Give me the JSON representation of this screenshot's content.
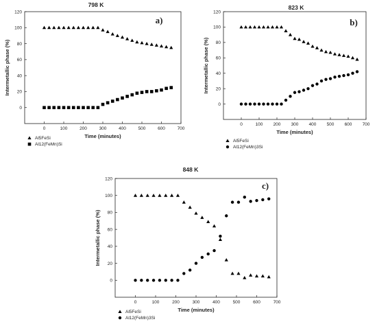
{
  "chart_data": [
    {
      "type": "scatter",
      "title": "798 K",
      "panel_label": "a)",
      "xlabel": "Time (minutes)",
      "ylabel": "Intermetallic phase (%)",
      "xlim": [
        -100,
        700
      ],
      "ylim": [
        -20,
        120
      ],
      "xticks": [
        "0",
        "100",
        "200",
        "300",
        "400",
        "500",
        "600",
        "700"
      ],
      "yticks": [
        "0",
        "20",
        "40",
        "60",
        "80",
        "100",
        "120"
      ],
      "grid": false,
      "legend_position": "bottom-left",
      "series": [
        {
          "name": "Al5FeSi",
          "marker": "triangle",
          "x": [
            0,
            25,
            50,
            75,
            100,
            125,
            150,
            175,
            200,
            225,
            250,
            275,
            300,
            325,
            350,
            375,
            400,
            425,
            450,
            475,
            500,
            525,
            550,
            575,
            600,
            625,
            650
          ],
          "y": [
            100,
            100,
            100,
            100,
            100,
            100,
            100,
            100,
            100,
            100,
            100,
            100,
            97,
            95,
            92,
            90,
            88,
            86,
            84,
            82,
            81,
            80,
            79,
            78,
            77,
            76,
            75
          ]
        },
        {
          "name": "Al12(FeMn)Si",
          "marker": "square",
          "x": [
            0,
            25,
            50,
            75,
            100,
            125,
            150,
            175,
            200,
            225,
            250,
            275,
            300,
            325,
            350,
            375,
            400,
            425,
            450,
            475,
            500,
            525,
            550,
            575,
            600,
            625,
            650
          ],
          "y": [
            0,
            0,
            0,
            0,
            0,
            0,
            0,
            0,
            0,
            0,
            0,
            0,
            4,
            6,
            8,
            10,
            12,
            14,
            16,
            18,
            19,
            20,
            20,
            21,
            22,
            24,
            25
          ]
        }
      ]
    },
    {
      "type": "scatter",
      "title": "823 K",
      "panel_label": "b)",
      "xlabel": "Time (minutes)",
      "ylabel": "Intermetallic phase (%)",
      "xlim": [
        -100,
        700
      ],
      "ylim": [
        -20,
        120
      ],
      "xticks": [
        "0",
        "100",
        "200",
        "300",
        "400",
        "500",
        "600",
        "700"
      ],
      "yticks": [
        "0",
        "20",
        "40",
        "60",
        "80",
        "100",
        "120"
      ],
      "grid": false,
      "legend_position": "bottom-left",
      "series": [
        {
          "name": "Al5FeSi",
          "marker": "triangle",
          "x": [
            0,
            25,
            50,
            75,
            100,
            125,
            150,
            175,
            200,
            225,
            250,
            275,
            300,
            325,
            350,
            375,
            400,
            425,
            450,
            475,
            500,
            525,
            550,
            575,
            600,
            625,
            650
          ],
          "y": [
            100,
            100,
            100,
            100,
            100,
            100,
            100,
            100,
            100,
            100,
            95,
            90,
            85,
            84,
            81,
            79,
            75,
            73,
            70,
            68,
            67,
            65,
            64,
            63,
            62,
            60,
            58
          ]
        },
        {
          "name": "Al12(FeMn)3Si",
          "marker": "circle",
          "x": [
            0,
            25,
            50,
            75,
            100,
            125,
            150,
            175,
            200,
            225,
            250,
            275,
            300,
            325,
            350,
            375,
            400,
            425,
            450,
            475,
            500,
            525,
            550,
            575,
            600,
            625,
            650
          ],
          "y": [
            0,
            0,
            0,
            0,
            0,
            0,
            0,
            0,
            0,
            0,
            5,
            10,
            15,
            16,
            18,
            20,
            24,
            26,
            30,
            32,
            33,
            35,
            36,
            37,
            38,
            40,
            42
          ]
        }
      ]
    },
    {
      "type": "scatter",
      "title": "848 K",
      "panel_label": "c)",
      "xlabel": "Time (minutes)",
      "ylabel": "Intermetallic phase (%)",
      "xlim": [
        -100,
        700
      ],
      "ylim": [
        -20,
        120
      ],
      "xticks": [
        "0",
        "100",
        "200",
        "300",
        "400",
        "500",
        "600",
        "700"
      ],
      "yticks": [
        "0",
        "20",
        "40",
        "60",
        "80",
        "100",
        "120"
      ],
      "grid": false,
      "legend_position": "bottom-left",
      "series": [
        {
          "name": "Al5FeSi",
          "marker": "triangle",
          "x": [
            0,
            30,
            60,
            90,
            120,
            150,
            180,
            210,
            240,
            270,
            300,
            330,
            360,
            390,
            420,
            450,
            480,
            510,
            540,
            570,
            600,
            630,
            660
          ],
          "y": [
            100,
            100,
            100,
            100,
            100,
            100,
            100,
            100,
            92,
            86,
            79,
            74,
            69,
            64,
            48,
            24,
            8,
            8,
            3,
            6,
            5,
            5,
            4
          ]
        },
        {
          "name": "Al12(FeMn)3Si",
          "marker": "circle",
          "x": [
            0,
            30,
            60,
            90,
            120,
            150,
            180,
            210,
            240,
            270,
            300,
            330,
            360,
            390,
            420,
            450,
            480,
            510,
            540,
            570,
            600,
            630,
            660
          ],
          "y": [
            0,
            0,
            0,
            0,
            0,
            0,
            0,
            0,
            8,
            12,
            20,
            27,
            31,
            35,
            52,
            76,
            92,
            92,
            98,
            93,
            94,
            95,
            96
          ]
        }
      ]
    }
  ]
}
